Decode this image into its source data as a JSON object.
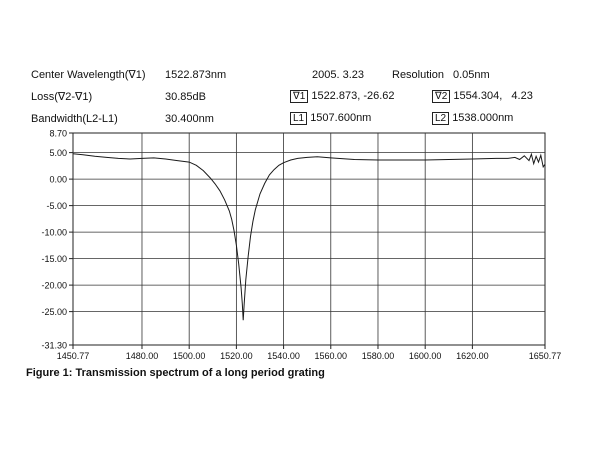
{
  "header": {
    "center_wavelength_label": "Center Wavelength(∇1)",
    "center_wavelength_value": "1522.873nm",
    "date": "2005. 3.23",
    "resolution_label": "Resolution",
    "resolution_value": "0.05nm",
    "loss_label": "Loss(∇2-∇1)",
    "loss_value": "30.85dB",
    "marker1_box": "∇1",
    "marker1_value": "1522.873, -26.62",
    "marker2_box": "∇2",
    "marker2_value": "1554.304,   4.23",
    "bandwidth_label": "Bandwidth(L2-L1)",
    "bandwidth_value": "30.400nm",
    "l1_box": "L1",
    "l1_value": "1507.600nm",
    "l2_box": "L2",
    "l2_value": "1538.000nm"
  },
  "caption": "Figure 1: Transmission spectrum of a long period grating",
  "chart_data": {
    "type": "line",
    "title": "",
    "xlabel": "",
    "ylabel": "",
    "xlim": [
      1450.77,
      1650.77
    ],
    "ylim": [
      -31.3,
      8.7
    ],
    "x_ticks": [
      1450.77,
      1480.0,
      1500.0,
      1520.0,
      1540.0,
      1560.0,
      1580.0,
      1600.0,
      1620.0,
      1650.77
    ],
    "x_tick_labels": [
      "1450.77",
      "1480.00",
      "1500.00",
      "1520.00",
      "1540.00",
      "1560.00",
      "1580.00",
      "1600.00",
      "1620.00",
      "1650.77"
    ],
    "y_ticks": [
      8.7,
      5.0,
      0.0,
      -5.0,
      -10.0,
      -15.0,
      -20.0,
      -25.0,
      -31.3
    ],
    "y_tick_labels": [
      "8.70",
      "5.00",
      "0.00",
      "-5.00",
      "-10.00",
      "-15.00",
      "-20.00",
      "-25.00",
      "-31.30"
    ],
    "grid": true,
    "line_color": "#1a1a1a",
    "series": [
      {
        "x": [
          1450.77,
          1455,
          1460,
          1465,
          1470,
          1475,
          1480,
          1485,
          1490,
          1495,
          1500,
          1503,
          1506,
          1509,
          1511,
          1513,
          1515,
          1517,
          1518,
          1519,
          1520,
          1521,
          1522,
          1522.5,
          1522.873,
          1523.3,
          1524,
          1525,
          1526,
          1527,
          1528,
          1530,
          1532,
          1534,
          1536,
          1538,
          1540,
          1543,
          1546,
          1550,
          1554.304,
          1560,
          1570,
          1580,
          1590,
          1600,
          1610,
          1620,
          1630,
          1635,
          1638,
          1640,
          1642,
          1644,
          1645,
          1646,
          1647,
          1648,
          1649,
          1650,
          1650.77
        ],
        "y": [
          4.8,
          4.6,
          4.3,
          4.1,
          3.9,
          3.8,
          3.9,
          4.0,
          3.8,
          3.5,
          3.2,
          2.6,
          1.6,
          0.2,
          -0.9,
          -2.2,
          -3.9,
          -6.0,
          -7.6,
          -9.7,
          -12.5,
          -16.0,
          -20.5,
          -23.5,
          -26.62,
          -23.5,
          -19.0,
          -14.5,
          -10.8,
          -8.0,
          -5.8,
          -2.8,
          -0.8,
          0.8,
          1.8,
          2.6,
          3.1,
          3.6,
          3.9,
          4.1,
          4.23,
          4.0,
          3.7,
          3.6,
          3.6,
          3.6,
          3.7,
          3.8,
          3.9,
          3.9,
          4.1,
          3.7,
          4.4,
          3.5,
          4.7,
          2.9,
          4.3,
          3.2,
          4.5,
          2.3,
          2.8
        ]
      }
    ]
  }
}
